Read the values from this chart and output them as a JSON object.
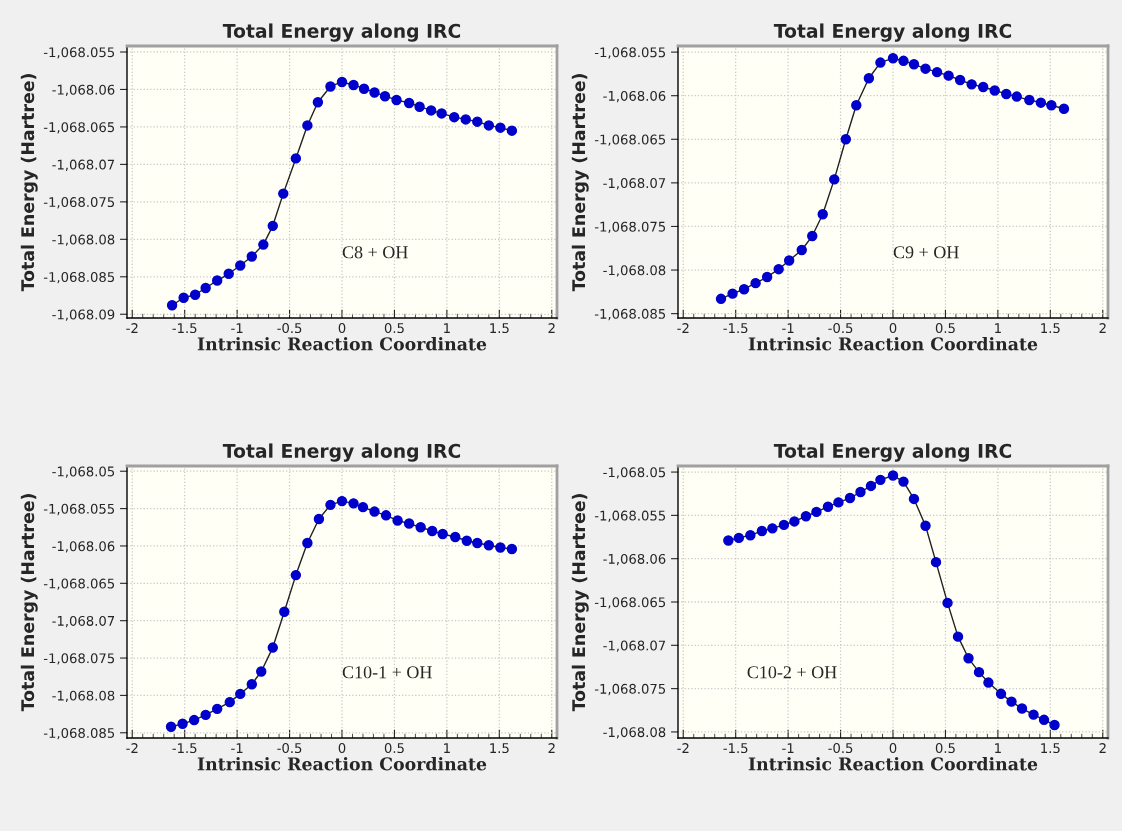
{
  "chart_data": [
    {
      "type": "line",
      "title": "Total Energy along IRC",
      "xlabel": "Intrinsic Reaction Coordinate",
      "ylabel": "Total Energy (Hartree)",
      "annotations": [
        "C8 + OH"
      ],
      "marker": "circle",
      "line_style": "solid",
      "grid": true,
      "xlim": [
        -2.05,
        2.05
      ],
      "xticks": [
        -2,
        -1.5,
        -1,
        -0.5,
        0,
        0.5,
        1,
        1.5,
        2
      ],
      "ylim": [
        -1068.0905,
        -1068.0542
      ],
      "yticks": [
        {
          "value": -1068.055,
          "label": "-1,068.055"
        },
        {
          "value": -1068.06,
          "label": "-1,068.06"
        },
        {
          "value": -1068.065,
          "label": "-1,068.065"
        },
        {
          "value": -1068.07,
          "label": "-1,068.07"
        },
        {
          "value": -1068.075,
          "label": "-1,068.075"
        },
        {
          "value": -1068.08,
          "label": "-1,068.08"
        },
        {
          "value": -1068.085,
          "label": "-1,068.085"
        },
        {
          "value": -1068.09,
          "label": "-1,068.09"
        }
      ],
      "x": [
        -1.62,
        -1.51,
        -1.4,
        -1.3,
        -1.19,
        -1.08,
        -0.97,
        -0.86,
        -0.75,
        -0.66,
        -0.56,
        -0.44,
        -0.33,
        -0.23,
        -0.11,
        0,
        0.11,
        0.21,
        0.31,
        0.41,
        0.52,
        0.64,
        0.74,
        0.85,
        0.95,
        1.07,
        1.18,
        1.29,
        1.4,
        1.51,
        1.62
      ],
      "series": [
        {
          "color": "#0000cc",
          "values": [
            -1068.0888,
            -1068.0878,
            -1068.0874,
            -1068.0865,
            -1068.0855,
            -1068.0846,
            -1068.0835,
            -1068.0823,
            -1068.0807,
            -1068.0782,
            -1068.0739,
            -1068.0692,
            -1068.0648,
            -1068.0617,
            -1068.0596,
            -1068.059,
            -1068.0594,
            -1068.0599,
            -1068.0604,
            -1068.0609,
            -1068.0614,
            -1068.0618,
            -1068.0623,
            -1068.0628,
            -1068.0632,
            -1068.0637,
            -1068.064,
            -1068.0643,
            -1068.0648,
            -1068.0651,
            -1068.0655
          ]
        }
      ]
    },
    {
      "type": "line",
      "title": "Total Energy along IRC",
      "xlabel": "Intrinsic Reaction Coordinate",
      "ylabel": "Total Energy (Hartree)",
      "annotations": [
        "C9 + OH"
      ],
      "marker": "circle",
      "line_style": "solid",
      "grid": true,
      "xlim": [
        -2.05,
        2.05
      ],
      "xticks": [
        -2,
        -1.5,
        -1,
        -0.5,
        0,
        0.5,
        1,
        1.5,
        2
      ],
      "ylim": [
        -1068.0855,
        -1068.0543
      ],
      "yticks": [
        {
          "value": -1068.055,
          "label": "-1,068.055"
        },
        {
          "value": -1068.06,
          "label": "-1,068.06"
        },
        {
          "value": -1068.065,
          "label": "-1,068.065"
        },
        {
          "value": -1068.07,
          "label": "-1,068.07"
        },
        {
          "value": -1068.075,
          "label": "-1,068.075"
        },
        {
          "value": -1068.08,
          "label": "-1,068.08"
        },
        {
          "value": -1068.085,
          "label": "-1,068.085"
        }
      ],
      "x": [
        -1.64,
        -1.53,
        -1.42,
        -1.31,
        -1.2,
        -1.09,
        -0.99,
        -0.87,
        -0.77,
        -0.67,
        -0.56,
        -0.45,
        -0.35,
        -0.23,
        -0.12,
        0,
        0.1,
        0.2,
        0.31,
        0.42,
        0.53,
        0.64,
        0.75,
        0.86,
        0.97,
        1.08,
        1.18,
        1.3,
        1.41,
        1.51,
        1.63
      ],
      "series": [
        {
          "color": "#0000cc",
          "values": [
            -1068.0833,
            -1068.0827,
            -1068.0822,
            -1068.0815,
            -1068.0808,
            -1068.0799,
            -1068.0789,
            -1068.0777,
            -1068.0761,
            -1068.0736,
            -1068.0696,
            -1068.065,
            -1068.0611,
            -1068.058,
            -1068.0562,
            -1068.0557,
            -1068.056,
            -1068.0564,
            -1068.0569,
            -1068.0573,
            -1068.0577,
            -1068.0582,
            -1068.0587,
            -1068.059,
            -1068.0594,
            -1068.0598,
            -1068.0601,
            -1068.0605,
            -1068.0608,
            -1068.0611,
            -1068.0615
          ]
        }
      ]
    },
    {
      "type": "line",
      "title": "Total Energy along IRC",
      "xlabel": "Intrinsic Reaction Coordinate",
      "ylabel": "Total Energy (Hartree)",
      "annotations": [
        "C10-1 + OH"
      ],
      "marker": "circle",
      "line_style": "solid",
      "grid": true,
      "xlim": [
        -2.05,
        2.05
      ],
      "xticks": [
        -2,
        -1.5,
        -1,
        -0.5,
        0,
        0.5,
        1,
        1.5,
        2
      ],
      "ylim": [
        -1068.0857,
        -1068.0493
      ],
      "yticks": [
        {
          "value": -1068.05,
          "label": "-1,068.05"
        },
        {
          "value": -1068.055,
          "label": "-1,068.055"
        },
        {
          "value": -1068.06,
          "label": "-1,068.06"
        },
        {
          "value": -1068.065,
          "label": "-1,068.065"
        },
        {
          "value": -1068.07,
          "label": "-1,068.07"
        },
        {
          "value": -1068.075,
          "label": "-1,068.075"
        },
        {
          "value": -1068.08,
          "label": "-1,068.08"
        },
        {
          "value": -1068.085,
          "label": "-1,068.085"
        }
      ],
      "x": [
        -1.63,
        -1.52,
        -1.41,
        -1.3,
        -1.19,
        -1.07,
        -0.97,
        -0.86,
        -0.77,
        -0.66,
        -0.55,
        -0.44,
        -0.33,
        -0.22,
        -0.11,
        0,
        0.11,
        0.2,
        0.31,
        0.42,
        0.53,
        0.64,
        0.75,
        0.86,
        0.96,
        1.08,
        1.19,
        1.29,
        1.4,
        1.51,
        1.62
      ],
      "series": [
        {
          "color": "#0000cc",
          "values": [
            -1068.0842,
            -1068.0838,
            -1068.0833,
            -1068.0826,
            -1068.0818,
            -1068.0809,
            -1068.0798,
            -1068.0785,
            -1068.0768,
            -1068.0736,
            -1068.0688,
            -1068.0639,
            -1068.0596,
            -1068.0564,
            -1068.0545,
            -1068.054,
            -1068.0543,
            -1068.0548,
            -1068.0554,
            -1068.0559,
            -1068.0566,
            -1068.057,
            -1068.0575,
            -1068.058,
            -1068.0584,
            -1068.0588,
            -1068.0593,
            -1068.0596,
            -1068.0599,
            -1068.0602,
            -1068.0604
          ]
        }
      ]
    },
    {
      "type": "line",
      "title": "Total Energy along IRC",
      "xlabel": "Intrinsic Reaction Coordinate",
      "ylabel": "Total Energy (Hartree)",
      "annotations": [
        "C10-2 + OH"
      ],
      "marker": "circle",
      "line_style": "solid",
      "grid": true,
      "xlim": [
        -2.05,
        2.05
      ],
      "xticks": [
        -2,
        -1.5,
        -1,
        -0.5,
        0,
        0.5,
        1,
        1.5,
        2
      ],
      "ylim": [
        -1068.0807,
        -1068.0493
      ],
      "yticks": [
        {
          "value": -1068.05,
          "label": "-1,068.05"
        },
        {
          "value": -1068.055,
          "label": "-1,068.055"
        },
        {
          "value": -1068.06,
          "label": "-1,068.06"
        },
        {
          "value": -1068.065,
          "label": "-1,068.065"
        },
        {
          "value": -1068.07,
          "label": "-1,068.07"
        },
        {
          "value": -1068.075,
          "label": "-1,068.075"
        },
        {
          "value": -1068.08,
          "label": "-1,068.08"
        }
      ],
      "x": [
        -1.57,
        -1.47,
        -1.36,
        -1.25,
        -1.15,
        -1.04,
        -0.94,
        -0.83,
        -0.73,
        -0.62,
        -0.52,
        -0.41,
        -0.31,
        -0.21,
        -0.12,
        0,
        0.1,
        0.2,
        0.31,
        0.41,
        0.52,
        0.62,
        0.72,
        0.82,
        0.91,
        1.03,
        1.13,
        1.23,
        1.34,
        1.44,
        1.54
      ],
      "series": [
        {
          "color": "#0000cc",
          "values": [
            -1068.0579,
            -1068.0576,
            -1068.0573,
            -1068.0568,
            -1068.0565,
            -1068.0561,
            -1068.0557,
            -1068.0551,
            -1068.0546,
            -1068.054,
            -1068.0535,
            -1068.053,
            -1068.0523,
            -1068.0516,
            -1068.0509,
            -1068.0504,
            -1068.0511,
            -1068.0531,
            -1068.0562,
            -1068.0604,
            -1068.0651,
            -1068.069,
            -1068.0715,
            -1068.0731,
            -1068.0743,
            -1068.0756,
            -1068.0765,
            -1068.0773,
            -1068.078,
            -1068.0786,
            -1068.0792
          ]
        }
      ]
    }
  ]
}
